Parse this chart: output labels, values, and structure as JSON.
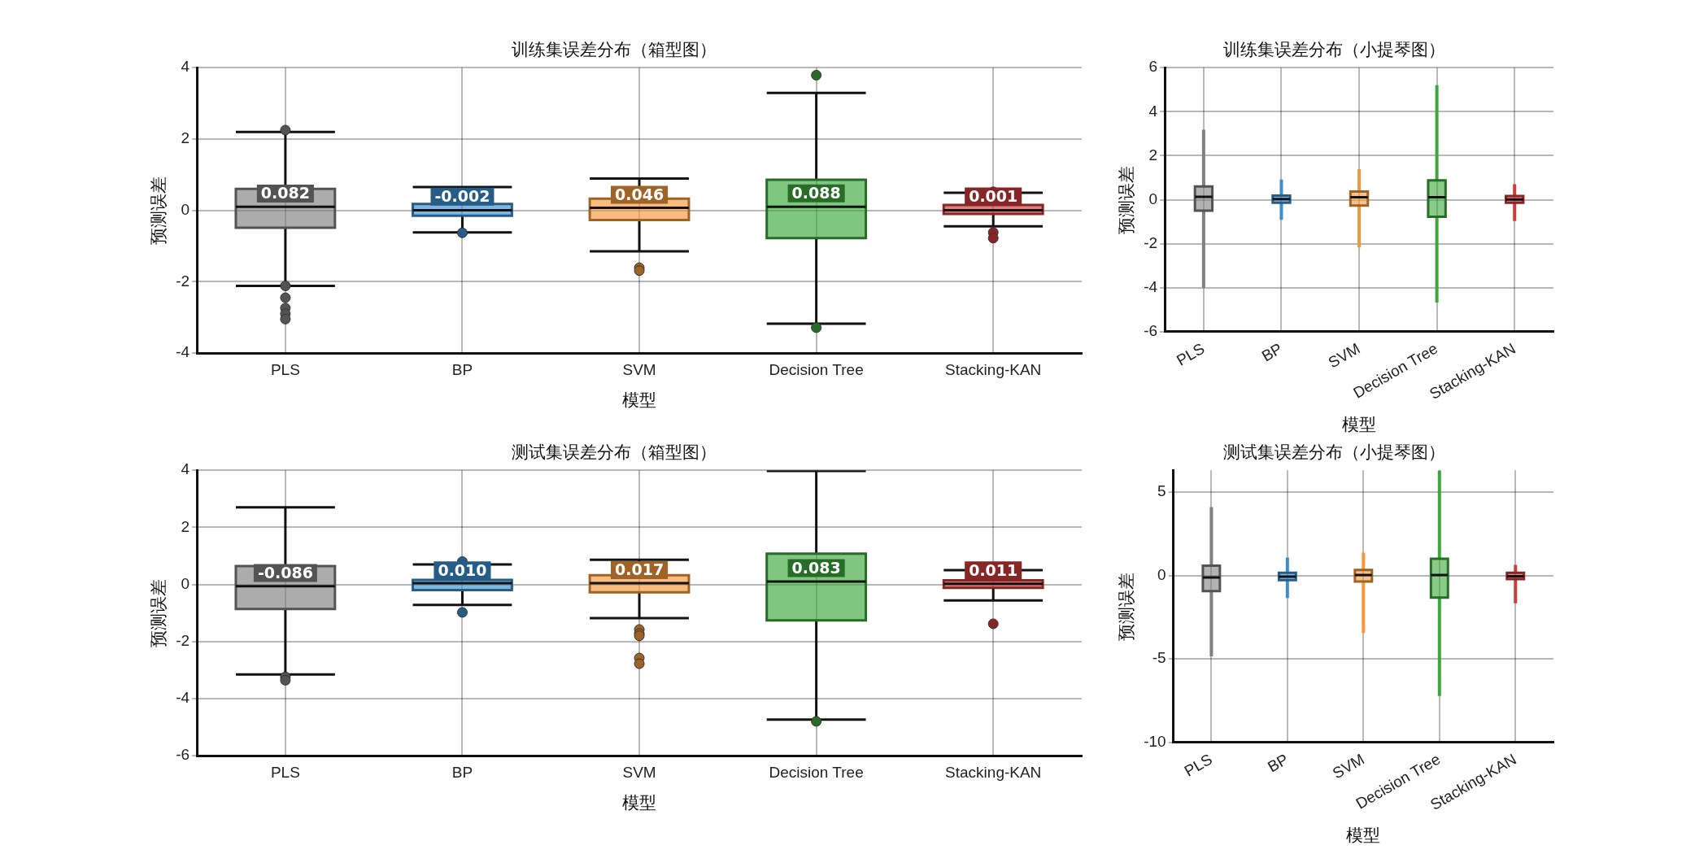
{
  "chart_data": [
    {
      "type": "box",
      "title": "训练集误差分布（箱型图）",
      "xlabel": "模型",
      "ylabel": "预测误差",
      "categories": [
        "PLS",
        "BP",
        "SVM",
        "Decision Tree",
        "Stacking-KAN"
      ],
      "colors": [
        "#808080",
        "#3b8fd0",
        "#f5963c",
        "#3ca83c",
        "#d03a3a"
      ],
      "ylim": [
        -4,
        4
      ],
      "yticks": [
        -4,
        -2,
        0,
        2,
        4
      ],
      "grid": true,
      "boxes": [
        {
          "low": -2.12,
          "q1": -0.49,
          "median": 0.1,
          "q3": 0.6,
          "high": 2.2,
          "outliers": [
            2.25,
            -2.12,
            -2.45,
            -2.74,
            -2.9,
            -3.05
          ]
        },
        {
          "low": -0.62,
          "q1": -0.15,
          "median": 0.0,
          "q3": 0.18,
          "high": 0.65,
          "outliers": [
            -0.63
          ]
        },
        {
          "low": -1.15,
          "q1": -0.27,
          "median": 0.07,
          "q3": 0.33,
          "high": 0.89,
          "outliers": [
            -1.61,
            -1.69
          ]
        },
        {
          "low": -3.18,
          "q1": -0.78,
          "median": 0.1,
          "q3": 0.86,
          "high": 3.29,
          "outliers": [
            3.79,
            -3.29
          ]
        },
        {
          "low": -0.45,
          "q1": -0.1,
          "median": 0.0,
          "q3": 0.15,
          "high": 0.49,
          "outliers": [
            0.52,
            -0.62,
            -0.78
          ]
        }
      ],
      "annotations": [
        {
          "text": "0.082",
          "x": "PLS",
          "y": 0.082
        },
        {
          "text": "-0.002",
          "x": "BP",
          "y": -0.002
        },
        {
          "text": "0.046",
          "x": "SVM",
          "y": 0.046
        },
        {
          "text": "0.088",
          "x": "Decision Tree",
          "y": 0.088
        },
        {
          "text": "0.001",
          "x": "Stacking-KAN",
          "y": 0.001
        }
      ]
    },
    {
      "type": "box",
      "title": "训练集误差分布（小提琴图）",
      "xlabel": "模型",
      "ylabel": "预测误差",
      "categories": [
        "PLS",
        "BP",
        "SVM",
        "Decision Tree",
        "Stacking-KAN"
      ],
      "colors": [
        "#808080",
        "#3b8fd0",
        "#f5963c",
        "#3ca83c",
        "#d03a3a"
      ],
      "ylim": [
        -6,
        6
      ],
      "yticks": [
        -6,
        -4,
        -2,
        0,
        2,
        4,
        6
      ],
      "grid": true,
      "boxes": [
        {
          "low": -4.0,
          "q1": -0.5,
          "median": 0.13,
          "q3": 0.6,
          "high": 3.18
        },
        {
          "low": -0.91,
          "q1": -0.14,
          "median": 0.03,
          "q3": 0.19,
          "high": 0.92
        },
        {
          "low": -2.17,
          "q1": -0.27,
          "median": 0.11,
          "q3": 0.37,
          "high": 1.39
        },
        {
          "low": -4.67,
          "q1": -0.77,
          "median": 0.11,
          "q3": 0.88,
          "high": 5.2
        },
        {
          "low": -0.97,
          "q1": -0.14,
          "median": 0.01,
          "q3": 0.17,
          "high": 0.7
        }
      ]
    },
    {
      "type": "box",
      "title": "测试集误差分布（箱型图）",
      "xlabel": "模型",
      "ylabel": "预测误差",
      "categories": [
        "PLS",
        "BP",
        "SVM",
        "Decision Tree",
        "Stacking-KAN"
      ],
      "colors": [
        "#808080",
        "#3b8fd0",
        "#f5963c",
        "#3ca83c",
        "#d03a3a"
      ],
      "ylim": [
        -6,
        4
      ],
      "yticks": [
        -6,
        -4,
        -2,
        0,
        2,
        4
      ],
      "grid": true,
      "boxes": [
        {
          "low": -3.16,
          "q1": -0.86,
          "median": -0.06,
          "q3": 0.64,
          "high": 2.7,
          "outliers": [
            -3.24,
            -3.36
          ]
        },
        {
          "low": -0.72,
          "q1": -0.2,
          "median": 0.04,
          "q3": 0.16,
          "high": 0.7,
          "outliers": [
            0.8,
            -0.98
          ]
        },
        {
          "low": -1.18,
          "q1": -0.28,
          "median": 0.04,
          "q3": 0.32,
          "high": 0.86,
          "outliers": [
            -1.58,
            -1.72,
            -1.8,
            -2.58,
            -2.78
          ]
        },
        {
          "low": -4.74,
          "q1": -1.26,
          "median": 0.1,
          "q3": 1.08,
          "high": 3.98,
          "outliers": [
            -4.8
          ]
        },
        {
          "low": -0.56,
          "q1": -0.12,
          "median": 0.02,
          "q3": 0.14,
          "high": 0.5,
          "outliers": [
            -1.38
          ]
        }
      ],
      "annotations": [
        {
          "text": "-0.086",
          "x": "PLS",
          "y": -0.086
        },
        {
          "text": "0.010",
          "x": "BP",
          "y": 0.01
        },
        {
          "text": "0.017",
          "x": "SVM",
          "y": 0.017
        },
        {
          "text": "0.083",
          "x": "Decision Tree",
          "y": 0.083
        },
        {
          "text": "0.011",
          "x": "Stacking-KAN",
          "y": 0.011
        }
      ]
    },
    {
      "type": "box",
      "title": "测试集误差分布（小提琴图）",
      "xlabel": "模型",
      "ylabel": "预测误差",
      "categories": [
        "PLS",
        "BP",
        "SVM",
        "Decision Tree",
        "Stacking-KAN"
      ],
      "colors": [
        "#808080",
        "#3b8fd0",
        "#f5963c",
        "#3ca83c",
        "#d03a3a"
      ],
      "ylim": [
        -10,
        6.3
      ],
      "yticks": [
        -10,
        -5,
        0,
        5
      ],
      "grid": true,
      "boxes": [
        {
          "low": -4.84,
          "q1": -0.94,
          "median": -0.12,
          "q3": 0.59,
          "high": 4.1
        },
        {
          "low": -1.35,
          "q1": -0.28,
          "median": -0.07,
          "q3": 0.16,
          "high": 1.08
        },
        {
          "low": -3.44,
          "q1": -0.36,
          "median": 0.03,
          "q3": 0.33,
          "high": 1.37
        },
        {
          "low": -7.22,
          "q1": -1.32,
          "median": 0.03,
          "q3": 1.0,
          "high": 6.3
        },
        {
          "low": -1.67,
          "q1": -0.21,
          "median": -0.05,
          "q3": 0.16,
          "high": 0.64
        }
      ]
    }
  ]
}
